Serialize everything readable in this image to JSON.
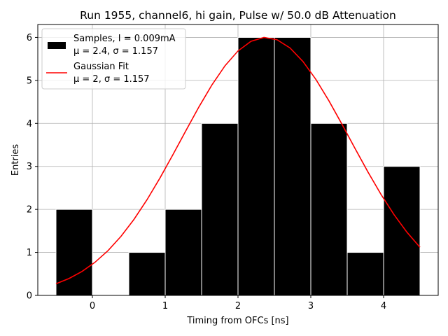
{
  "chart_data": {
    "type": "bar",
    "title": "Run 1955, channel6, hi gain, Pulse w/ 50.0 dB Attenuation",
    "xlabel": "Timing from OFCs [ns]",
    "ylabel": "Entries",
    "xlim": [
      -0.75,
      4.75
    ],
    "ylim": [
      0,
      6.3
    ],
    "xticks": [
      0,
      1,
      2,
      3,
      4
    ],
    "yticks": [
      0,
      1,
      2,
      3,
      4,
      5,
      6
    ],
    "grid": true,
    "legend_position": "top-left",
    "histogram": {
      "name": "Samples, I = 0.009mA",
      "name_line2": "μ = 2.4, σ = 1.157",
      "color": "#000000",
      "edge_color": "#ffffff",
      "bin_edges": [
        -0.5,
        0.0,
        0.5,
        1.0,
        1.5,
        2.0,
        2.5,
        3.0,
        3.5,
        4.0,
        4.5
      ],
      "counts": [
        2,
        0,
        1,
        2,
        4,
        6,
        6,
        4,
        1,
        3
      ]
    },
    "fit": {
      "name": "Gaussian Fit",
      "name_line2": "μ = 2, σ = 1.157",
      "color": "#ff0000",
      "mu": 2.38,
      "sigma": 1.157,
      "amplitude": 6.0,
      "x_range": [
        -0.5,
        4.5
      ]
    }
  }
}
